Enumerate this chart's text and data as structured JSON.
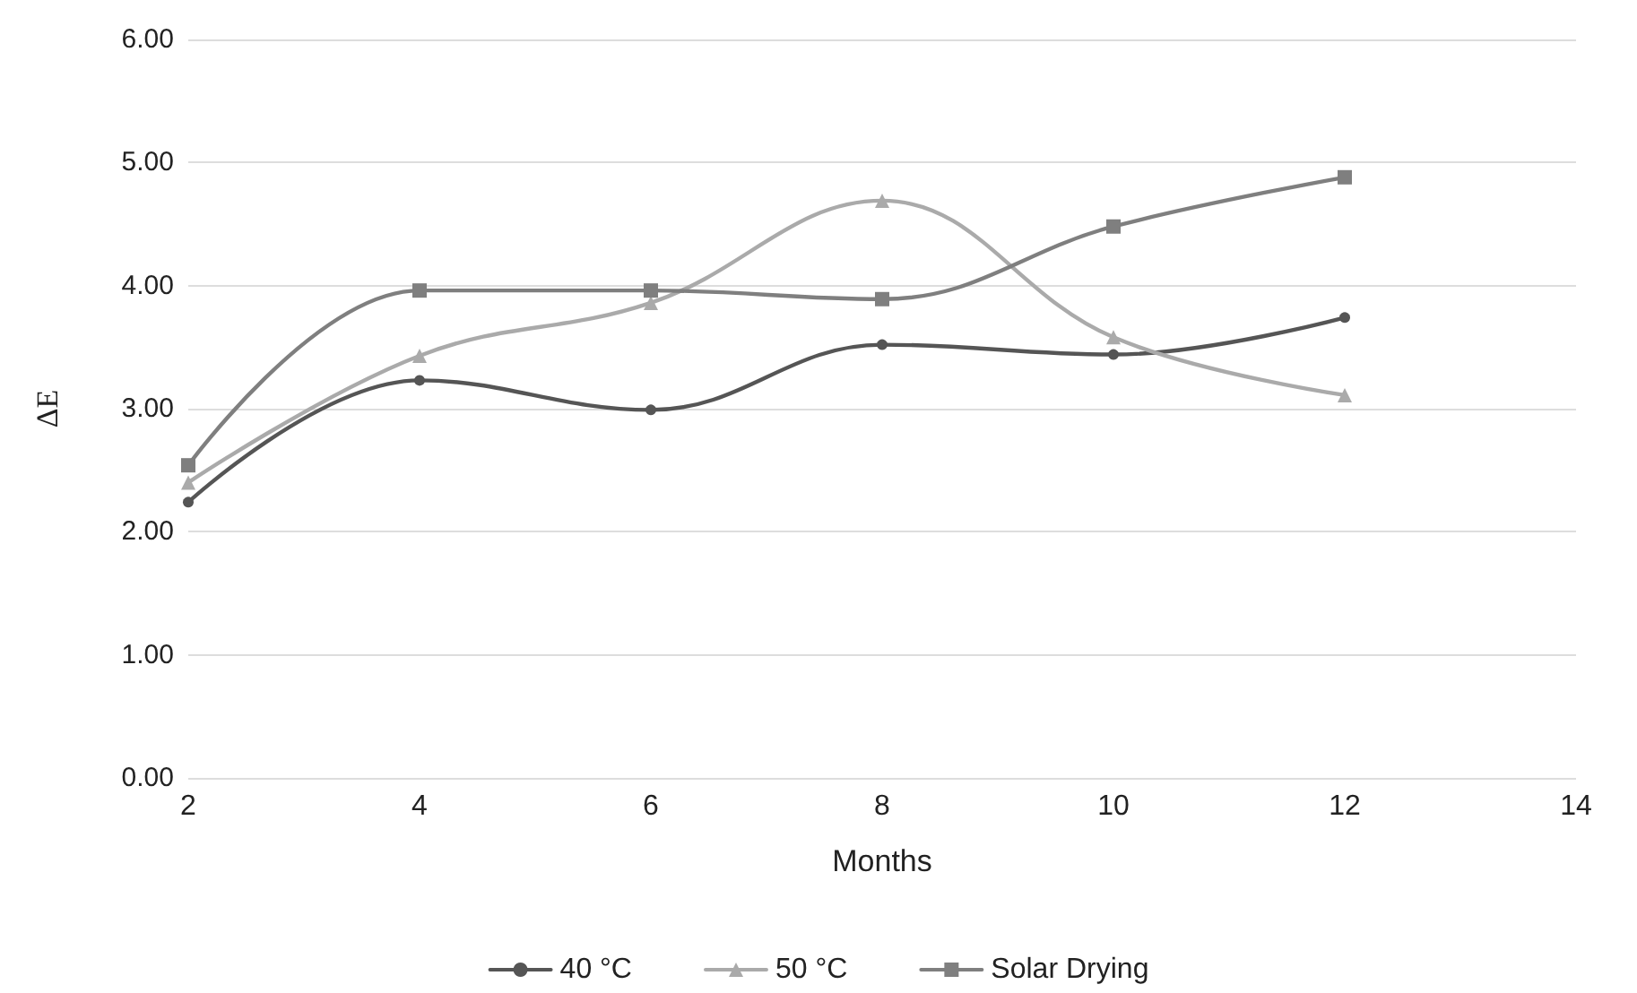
{
  "chart_data": {
    "type": "line",
    "xlabel": "Months",
    "ylabel": "ΔE",
    "x": [
      2,
      4,
      6,
      8,
      10,
      12
    ],
    "series": [
      {
        "name": "40 °C",
        "color": "#555555",
        "marker": "circle",
        "values": [
          2.24,
          3.23,
          2.99,
          3.52,
          3.44,
          3.74
        ]
      },
      {
        "name": "50 °C",
        "color": "#aaaaaa",
        "marker": "triangle",
        "values": [
          2.4,
          3.43,
          3.86,
          4.69,
          3.58,
          3.11
        ]
      },
      {
        "name": "Solar Drying",
        "color": "#7f7f7f",
        "marker": "square",
        "values": [
          2.54,
          3.96,
          3.96,
          3.89,
          4.48,
          4.88
        ]
      }
    ],
    "xlim": [
      2,
      14
    ],
    "xticks": [
      2,
      4,
      6,
      8,
      10,
      12,
      14
    ],
    "ylim": [
      0,
      6
    ],
    "yticks": [
      {
        "value": 0,
        "label": "0.00"
      },
      {
        "value": 1,
        "label": "1.00"
      },
      {
        "value": 2,
        "label": "2.00"
      },
      {
        "value": 3,
        "label": "3.00"
      },
      {
        "value": 4,
        "label": "4.00"
      },
      {
        "value": 5,
        "label": "5.00"
      },
      {
        "value": 6,
        "label": "6.00"
      }
    ],
    "grid": "y",
    "legend": "bottom",
    "line_style": "solid"
  }
}
